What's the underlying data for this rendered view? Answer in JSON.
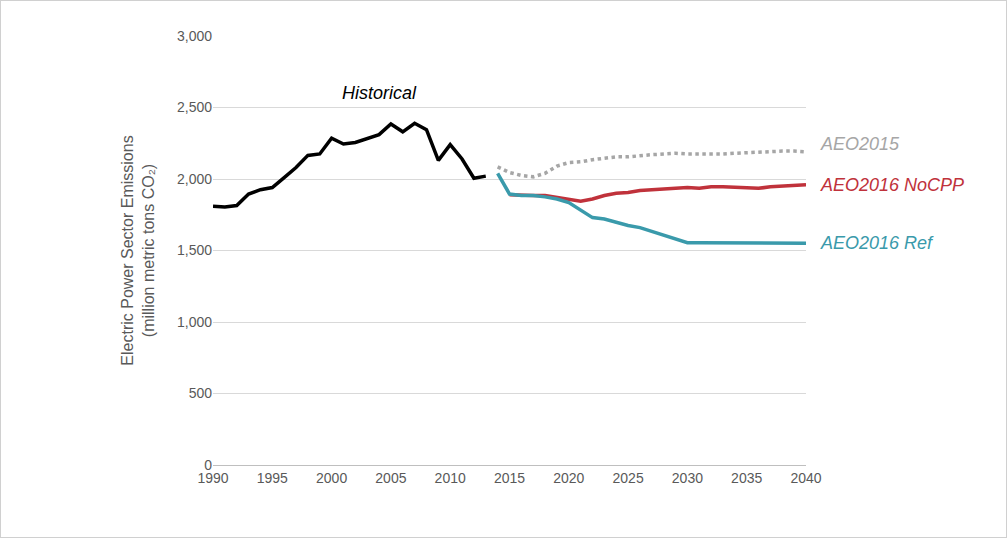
{
  "chart_data": {
    "type": "line",
    "ylabel": [
      "Electric Power Sector Emissions",
      "(million metric tons CO₂)"
    ],
    "xlim": [
      1990,
      2040
    ],
    "xticks": [
      1990,
      1995,
      2000,
      2005,
      2010,
      2015,
      2020,
      2025,
      2030,
      2035,
      2040
    ],
    "ylim": [
      0,
      3000
    ],
    "yticks": [
      0,
      500,
      {
        "value": 1000,
        "label": "1,000"
      },
      {
        "value": 1500,
        "label": "1,500"
      },
      {
        "value": 2000,
        "label": "2,000"
      },
      {
        "value": 2500,
        "label": "2,500"
      },
      {
        "value": 3000,
        "label": "3,000"
      }
    ],
    "grid": true,
    "series": [
      {
        "name": "Historical",
        "color": "#000000",
        "line_style": "solid",
        "x": [
          1990,
          1991,
          1992,
          1993,
          1994,
          1995,
          1996,
          1997,
          1998,
          1999,
          2000,
          2001,
          2002,
          2003,
          2004,
          2005,
          2006,
          2007,
          2008,
          2009,
          2010,
          2011,
          2012,
          2013
        ],
        "values": [
          1810,
          1805,
          1815,
          1895,
          1925,
          1940,
          2010,
          2080,
          2165,
          2175,
          2285,
          2245,
          2255,
          2280,
          2310,
          2385,
          2330,
          2390,
          2345,
          2130,
          2240,
          2140,
          2005,
          2020
        ]
      },
      {
        "name": "AEO2015",
        "color": "#a6a6a6",
        "line_style": "dotted",
        "x": [
          2014,
          2015,
          2016,
          2017,
          2018,
          2019,
          2020,
          2021,
          2022,
          2023,
          2024,
          2025,
          2026,
          2027,
          2028,
          2029,
          2030,
          2031,
          2032,
          2033,
          2034,
          2035,
          2036,
          2037,
          2038,
          2039,
          2040
        ],
        "values": [
          2085,
          2045,
          2025,
          2015,
          2040,
          2090,
          2115,
          2120,
          2135,
          2145,
          2155,
          2155,
          2165,
          2170,
          2175,
          2180,
          2175,
          2175,
          2170,
          2175,
          2180,
          2185,
          2190,
          2190,
          2195,
          2195,
          2190
        ]
      },
      {
        "name": "AEO2016 NoCPP",
        "color": "#c0323b",
        "line_style": "solid",
        "x": [
          2015,
          2016,
          2017,
          2018,
          2019,
          2020,
          2021,
          2022,
          2023,
          2024,
          2025,
          2026,
          2027,
          2028,
          2029,
          2030,
          2031,
          2032,
          2033,
          2034,
          2035,
          2036,
          2037,
          2038,
          2039,
          2040
        ],
        "values": [
          1890,
          1885,
          1885,
          1885,
          1870,
          1855,
          1845,
          1860,
          1885,
          1900,
          1905,
          1920,
          1925,
          1930,
          1935,
          1940,
          1935,
          1945,
          1945,
          1940,
          1940,
          1935,
          1945,
          1950,
          1955,
          1960
        ]
      },
      {
        "name": "AEO2016 Ref",
        "color": "#3a9aab",
        "line_style": "solid",
        "x": [
          2014,
          2015,
          2016,
          2017,
          2018,
          2019,
          2020,
          2021,
          2022,
          2023,
          2024,
          2025,
          2026,
          2027,
          2028,
          2029,
          2030,
          2031,
          2032,
          2033,
          2034,
          2035,
          2036,
          2037,
          2038,
          2039,
          2040
        ],
        "values": [
          2040,
          1895,
          1885,
          1885,
          1875,
          1860,
          1835,
          1780,
          1730,
          1720,
          1695,
          1675,
          1660,
          1635,
          1610,
          1580,
          1555,
          1555,
          1555,
          1550,
          1550,
          1550,
          1550,
          1550,
          1550,
          1550,
          1550
        ]
      }
    ]
  }
}
